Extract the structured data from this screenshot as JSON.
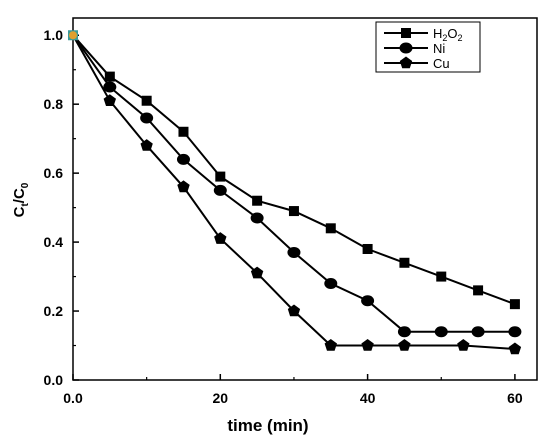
{
  "chart_data": {
    "type": "line",
    "title": "",
    "xlabel": "time (min)",
    "ylabel": "Ct/C0",
    "ylabel_main": "C",
    "ylabel_sub1": "t",
    "ylabel_mid": "/C",
    "ylabel_sub2": "0",
    "xlim": [
      0,
      63
    ],
    "ylim": [
      0,
      1.05
    ],
    "x_ticks": [
      0,
      20,
      40,
      60
    ],
    "x_tick_labels": [
      "0.0",
      "20",
      "40",
      "60"
    ],
    "y_ticks": [
      0,
      0.2,
      0.4,
      0.6,
      0.8,
      1.0
    ],
    "y_tick_labels": [
      "0.0",
      "0.2",
      "0.4",
      "0.6",
      "0.8",
      "1.0"
    ],
    "grid": false,
    "legend_position": "top-right",
    "series": [
      {
        "name": "H2O2",
        "legend_main": "H",
        "legend_sub1": "2",
        "legend_mid": "O",
        "legend_sub2": "2",
        "marker": "square",
        "x": [
          0,
          5,
          10,
          15,
          20,
          25,
          30,
          35,
          40,
          45,
          50,
          55,
          60
        ],
        "y": [
          1.0,
          0.88,
          0.81,
          0.72,
          0.59,
          0.52,
          0.49,
          0.44,
          0.38,
          0.34,
          0.3,
          0.26,
          0.22
        ]
      },
      {
        "name": "Ni",
        "marker": "circle",
        "x": [
          0,
          5,
          10,
          15,
          20,
          25,
          30,
          35,
          40,
          45,
          50,
          55,
          60
        ],
        "y": [
          1.0,
          0.85,
          0.76,
          0.64,
          0.55,
          0.47,
          0.37,
          0.28,
          0.23,
          0.14,
          0.14,
          0.14,
          0.14
        ]
      },
      {
        "name": "Cu",
        "marker": "pentagon",
        "x": [
          0,
          5,
          10,
          15,
          20,
          25,
          30,
          35,
          40,
          45,
          53,
          60
        ],
        "y": [
          1.0,
          0.81,
          0.68,
          0.56,
          0.41,
          0.31,
          0.2,
          0.1,
          0.1,
          0.1,
          0.1,
          0.09
        ]
      }
    ],
    "start_point_color": "#3a9a9a"
  }
}
